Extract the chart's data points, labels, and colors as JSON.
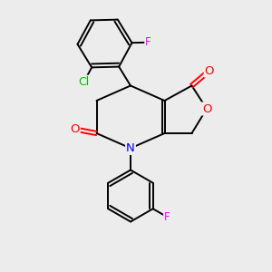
{
  "bg_color": "#ececec",
  "bond_color": "#000000",
  "atom_colors": {
    "N": "#0000ff",
    "O": "#ff0000",
    "Cl": "#00bb00",
    "F_top": "#ff00ff",
    "F_bottom": "#ff00ff"
  },
  "font_size": 8.5,
  "line_width": 1.4,
  "figsize": [
    3.0,
    3.0
  ],
  "dpi": 100
}
